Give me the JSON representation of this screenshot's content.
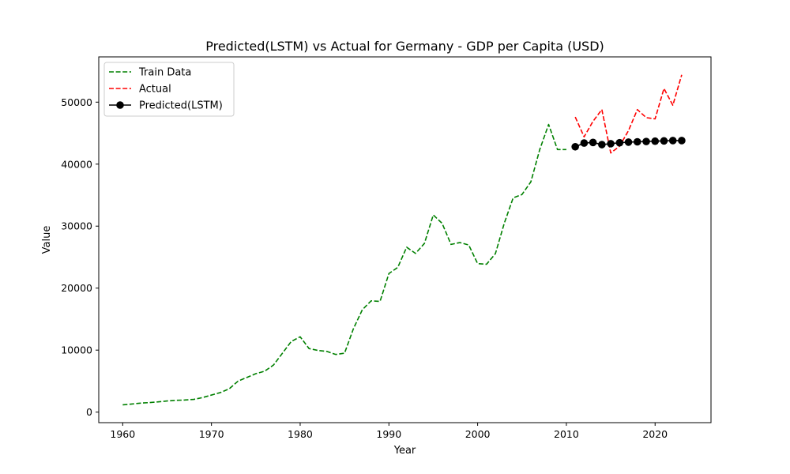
{
  "chart_data": {
    "type": "line",
    "title": "Predicted(LSTM) vs Actual for Germany - GDP per Capita (USD)",
    "xlabel": "Year",
    "ylabel": "Value",
    "xlim": [
      1957.3,
      2026.3
    ],
    "ylim": [
      -1700,
      57300
    ],
    "xticks": [
      1960,
      1970,
      1980,
      1990,
      2000,
      2010,
      2020
    ],
    "yticks": [
      0,
      10000,
      20000,
      30000,
      40000,
      50000
    ],
    "grid": false,
    "legend_position": "top-left",
    "series": [
      {
        "name": "Train Data",
        "color": "#008000",
        "style": "dashed",
        "marker": "none",
        "x": [
          1960,
          1961,
          1962,
          1963,
          1964,
          1965,
          1966,
          1967,
          1968,
          1969,
          1970,
          1971,
          1972,
          1973,
          1974,
          1975,
          1976,
          1977,
          1978,
          1979,
          1980,
          1981,
          1982,
          1983,
          1984,
          1985,
          1986,
          1987,
          1988,
          1989,
          1990,
          1991,
          1992,
          1993,
          1994,
          1995,
          1996,
          1997,
          1998,
          1999,
          2000,
          2001,
          2002,
          2003,
          2004,
          2005,
          2006,
          2007,
          2008,
          2009,
          2010
        ],
        "y": [
          1170,
          1300,
          1450,
          1530,
          1650,
          1800,
          1900,
          1950,
          2050,
          2350,
          2750,
          3150,
          3750,
          5000,
          5600,
          6200,
          6600,
          7600,
          9500,
          11400,
          12150,
          10250,
          9950,
          9800,
          9300,
          9500,
          13450,
          16500,
          17950,
          17850,
          22350,
          23350,
          26600,
          25600,
          27200,
          31800,
          30450,
          27050,
          27350,
          26950,
          23950,
          23850,
          25550,
          30450,
          34550,
          35100,
          37150,
          42350,
          46400,
          42350,
          42350
        ]
      },
      {
        "name": "Actual",
        "color": "#ff0000",
        "style": "dashed",
        "marker": "none",
        "x": [
          2011,
          2012,
          2013,
          2014,
          2015,
          2016,
          2017,
          2018,
          2019,
          2020,
          2021,
          2022,
          2023
        ],
        "y": [
          47600,
          44400,
          46900,
          48800,
          41800,
          42900,
          45400,
          48800,
          47500,
          47300,
          52200,
          49500,
          54400
        ]
      },
      {
        "name": "Predicted(LSTM)",
        "color": "#000000",
        "style": "solid",
        "marker": "circle",
        "x": [
          2011,
          2012,
          2013,
          2014,
          2015,
          2016,
          2017,
          2018,
          2019,
          2020,
          2021,
          2022,
          2023
        ],
        "y": [
          42800,
          43400,
          43500,
          43150,
          43300,
          43450,
          43550,
          43600,
          43650,
          43700,
          43750,
          43800,
          43800
        ]
      }
    ]
  }
}
